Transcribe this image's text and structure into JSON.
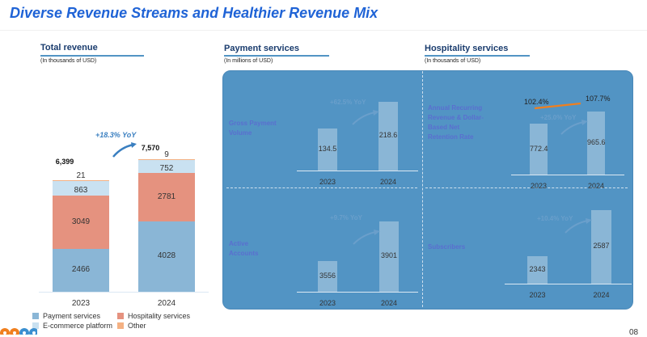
{
  "title": "Diverse Revenue Streams and Healthier Revenue Mix",
  "page_number": "08",
  "sections": {
    "total": {
      "heading": "Total revenue",
      "sub": "(In thousands of USD)"
    },
    "payment": {
      "heading": "Payment services",
      "sub": "(In millions of USD)"
    },
    "hospitality": {
      "heading": "Hospitality services",
      "sub": "(In thousands of USD)"
    }
  },
  "colors": {
    "payment": "#8ab6d6",
    "hospitality": "#e5927f",
    "ecommerce": "#c9e1f1",
    "other": "#f4b183",
    "panel": "#5294c4",
    "retention_line": "#f07f1e"
  },
  "chart_data": [
    {
      "type": "bar",
      "stacked": true,
      "categories": [
        "2023",
        "2024"
      ],
      "series": [
        {
          "name": "Payment services",
          "values": [
            2466,
            4028
          ]
        },
        {
          "name": "Hospitality services",
          "values": [
            3049,
            2781
          ]
        },
        {
          "name": "E-commerce platform",
          "values": [
            863,
            752
          ]
        },
        {
          "name": "Other",
          "values": [
            21,
            9
          ]
        }
      ],
      "totals": [
        "6,399",
        "7,570"
      ],
      "annotation": "+18.3% YoY",
      "legend": "bottom"
    },
    {
      "type": "bar",
      "label": "Gross Payment Volume",
      "categories": [
        "2023",
        "2024"
      ],
      "values": [
        134.5,
        218.6
      ],
      "annotation": "+62.5% YoY"
    },
    {
      "type": "bar",
      "label": "Active Accounts",
      "categories": [
        "2023",
        "2024"
      ],
      "values": [
        3556,
        3901
      ],
      "annotation": "+9.7% YoY"
    },
    {
      "type": "bar",
      "label": "Annual Recurring Revenue & Dollar-Based Net Retention Rate",
      "categories": [
        "2023",
        "2024"
      ],
      "values": [
        772.4,
        965.6
      ],
      "line": {
        "values": [
          "102.4%",
          "107.7%"
        ]
      },
      "annotation": "+25.0% YoY"
    },
    {
      "type": "bar",
      "label": "Subscribers",
      "categories": [
        "2023",
        "2024"
      ],
      "values": [
        2343,
        2587
      ],
      "annotation": "+10.4% YoY"
    }
  ]
}
